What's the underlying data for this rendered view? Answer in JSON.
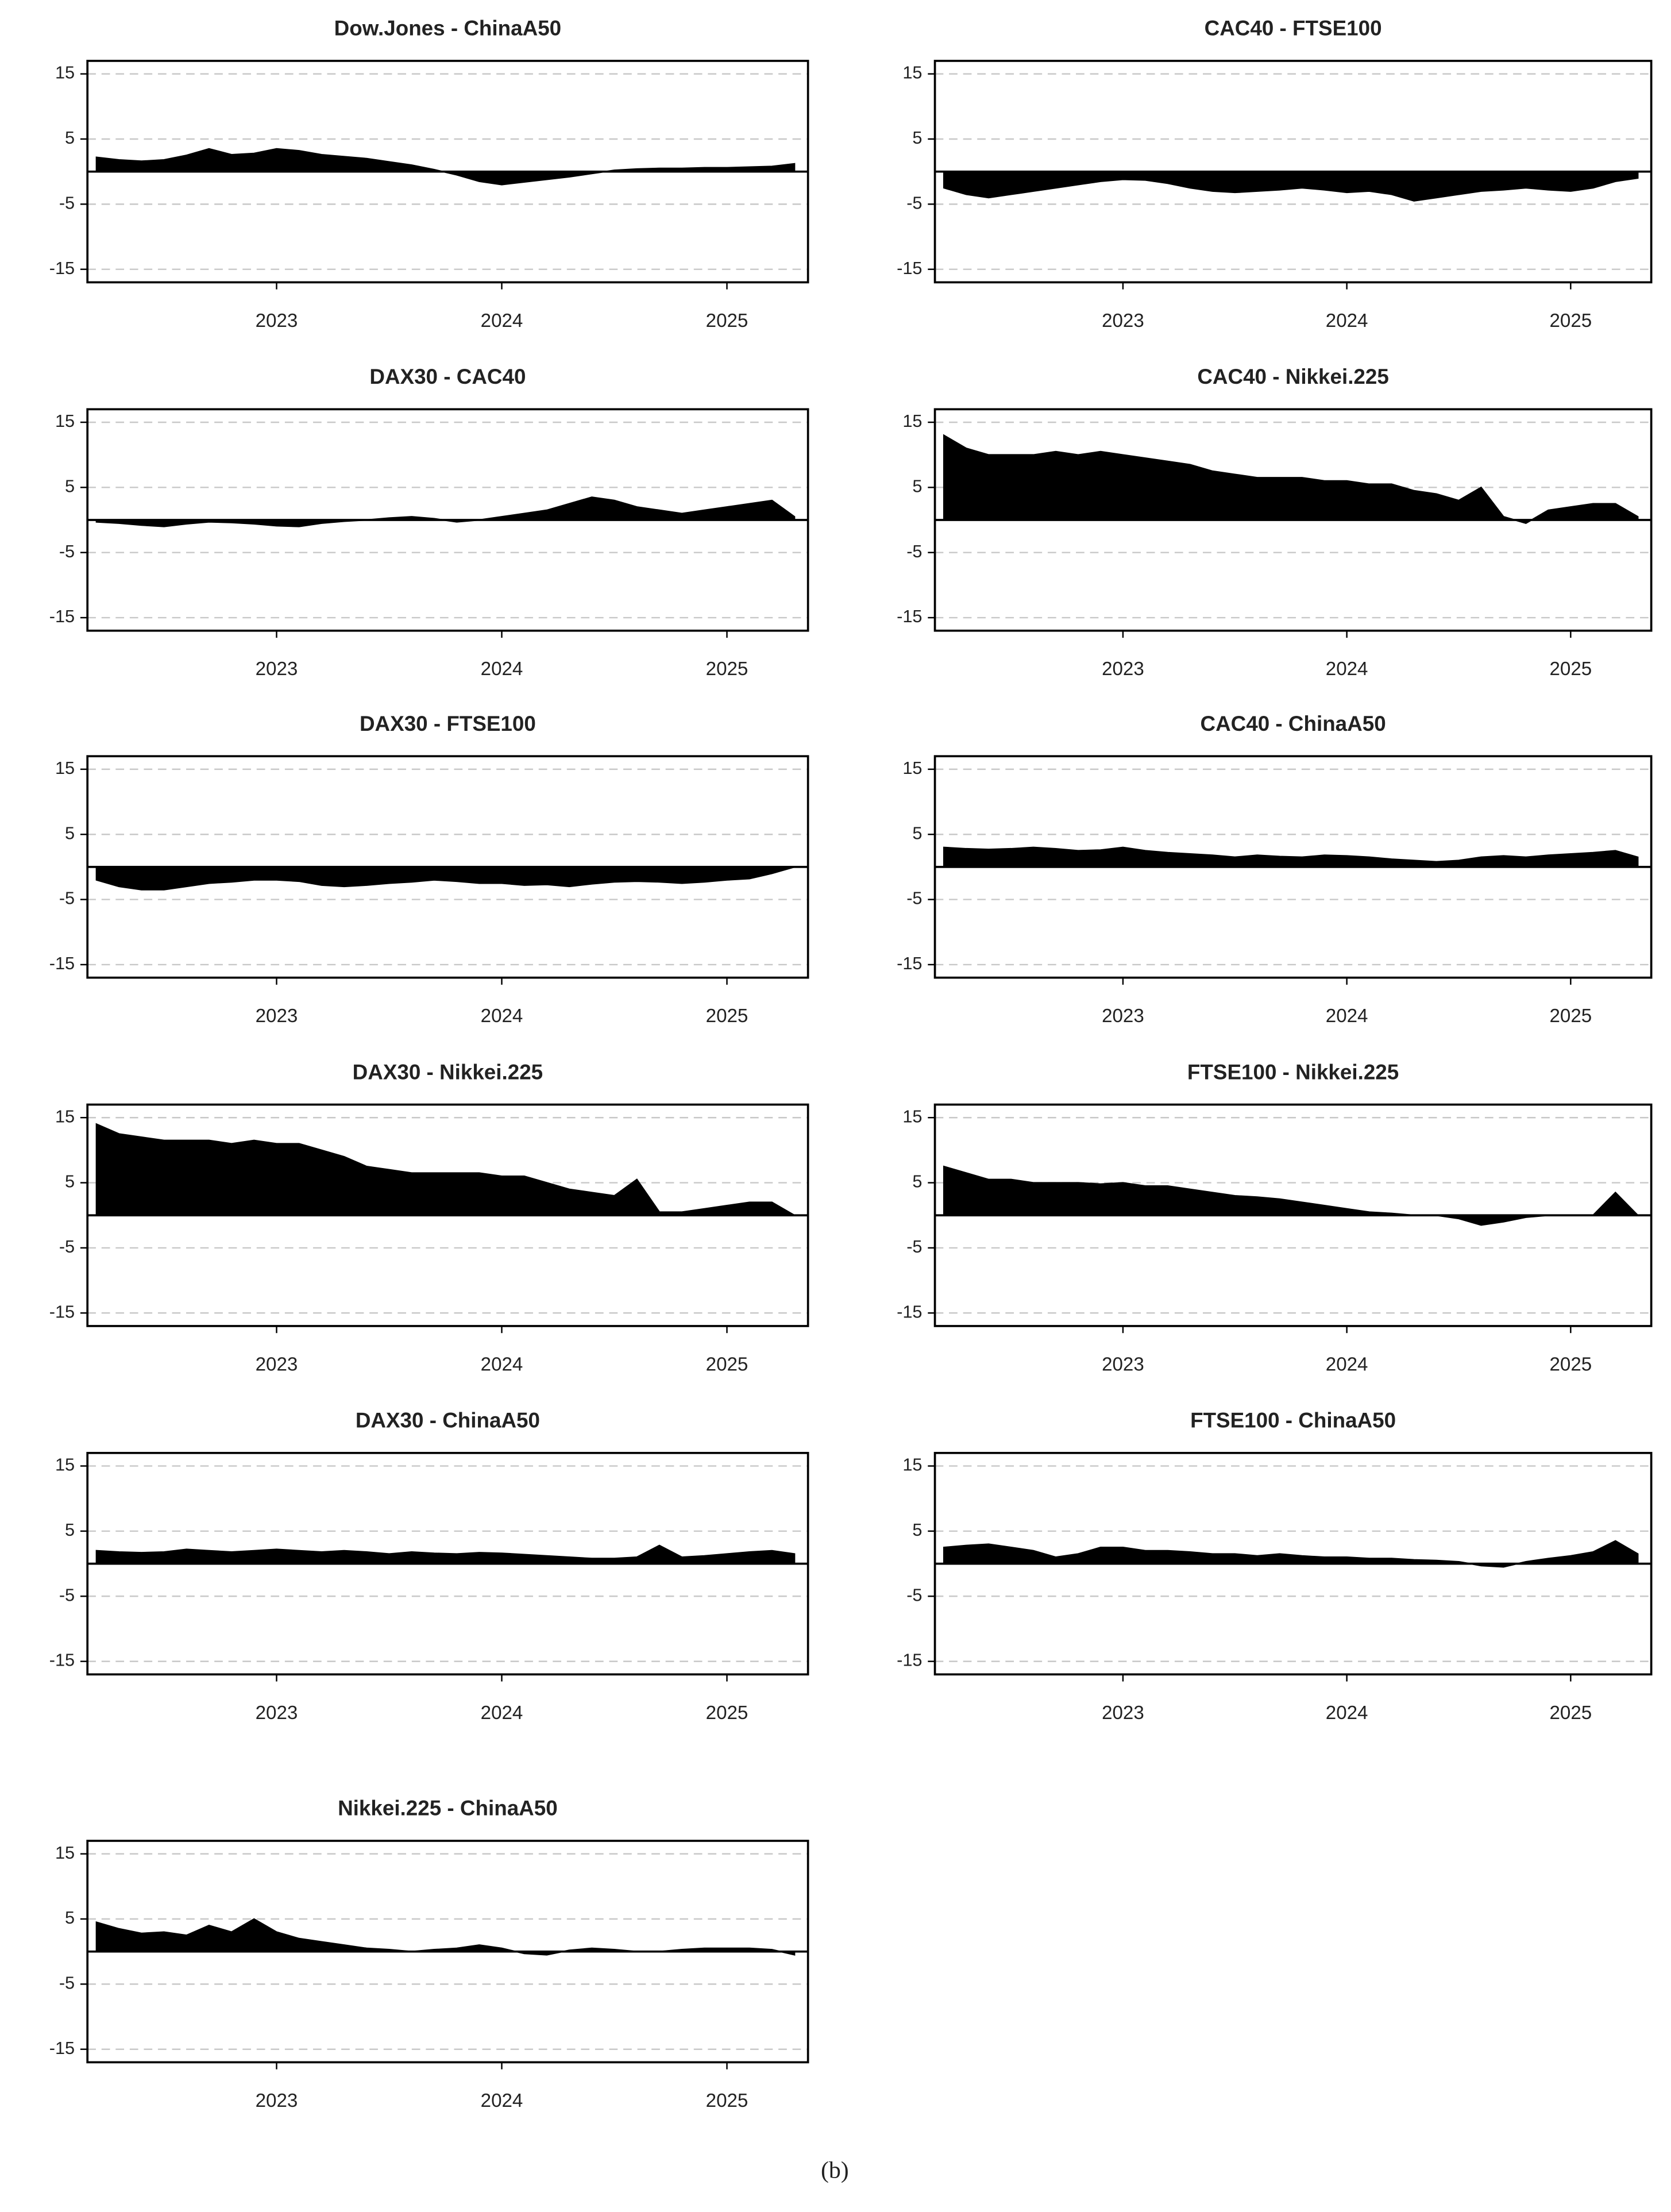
{
  "chart_data": [
    {
      "type": "area",
      "title": "Dow.Jones - ChinaA50",
      "color": "#000000",
      "grid": true,
      "x": [
        2022.2,
        2022.3,
        2022.4,
        2022.5,
        2022.6,
        2022.7,
        2022.8,
        2022.9,
        2023.0,
        2023.1,
        2023.2,
        2023.3,
        2023.4,
        2023.5,
        2023.6,
        2023.7,
        2023.8,
        2023.9,
        2024.0,
        2024.1,
        2024.2,
        2024.3,
        2024.4,
        2024.5,
        2024.6,
        2024.7,
        2024.8,
        2024.9,
        2025.0,
        2025.1,
        2025.2,
        2025.3
      ],
      "values": [
        2.2,
        1.8,
        1.6,
        1.8,
        2.5,
        3.5,
        2.6,
        2.8,
        3.5,
        3.2,
        2.6,
        2.3,
        2.0,
        1.5,
        1.0,
        0.3,
        -0.5,
        -1.5,
        -2.0,
        -1.6,
        -1.2,
        -0.8,
        -0.3,
        0.2,
        0.4,
        0.5,
        0.5,
        0.6,
        0.6,
        0.7,
        0.8,
        1.2
      ],
      "xlim": [
        2022.16,
        2025.36
      ],
      "ylim": [
        -17,
        17
      ],
      "xticks": [
        2023,
        2024,
        2025
      ],
      "yticks": [
        -15,
        -5,
        5,
        15
      ]
    },
    {
      "type": "area",
      "title": "CAC40 - FTSE100",
      "color": "#000000",
      "grid": true,
      "x": [
        2022.2,
        2022.3,
        2022.4,
        2022.5,
        2022.6,
        2022.7,
        2022.8,
        2022.9,
        2023.0,
        2023.1,
        2023.2,
        2023.3,
        2023.4,
        2023.5,
        2023.6,
        2023.7,
        2023.8,
        2023.9,
        2024.0,
        2024.1,
        2024.2,
        2024.3,
        2024.4,
        2024.5,
        2024.6,
        2024.7,
        2024.8,
        2024.9,
        2025.0,
        2025.1,
        2025.2,
        2025.3
      ],
      "values": [
        -2.5,
        -3.5,
        -4.0,
        -3.5,
        -3.0,
        -2.5,
        -2.0,
        -1.5,
        -1.2,
        -1.3,
        -1.8,
        -2.5,
        -3.0,
        -3.2,
        -3.0,
        -2.8,
        -2.5,
        -2.8,
        -3.2,
        -3.0,
        -3.5,
        -4.5,
        -4.0,
        -3.5,
        -3.0,
        -2.8,
        -2.5,
        -2.8,
        -3.0,
        -2.5,
        -1.5,
        -1.0
      ],
      "xlim": [
        2022.16,
        2025.36
      ],
      "ylim": [
        -17,
        17
      ],
      "xticks": [
        2023,
        2024,
        2025
      ],
      "yticks": [
        -15,
        -5,
        5,
        15
      ]
    },
    {
      "type": "area",
      "title": "DAX30 - CAC40",
      "color": "#000000",
      "grid": true,
      "x": [
        2022.2,
        2022.3,
        2022.4,
        2022.5,
        2022.6,
        2022.7,
        2022.8,
        2022.9,
        2023.0,
        2023.1,
        2023.2,
        2023.3,
        2023.4,
        2023.5,
        2023.6,
        2023.7,
        2023.8,
        2023.9,
        2024.0,
        2024.1,
        2024.2,
        2024.3,
        2024.4,
        2024.5,
        2024.6,
        2024.7,
        2024.8,
        2024.9,
        2025.0,
        2025.1,
        2025.2,
        2025.3
      ],
      "values": [
        -0.3,
        -0.5,
        -0.8,
        -1.0,
        -0.6,
        -0.3,
        -0.4,
        -0.6,
        -0.9,
        -1.0,
        -0.5,
        -0.2,
        0.0,
        0.3,
        0.5,
        0.2,
        -0.3,
        0.0,
        0.5,
        1.0,
        1.5,
        2.5,
        3.5,
        3.0,
        2.0,
        1.5,
        1.0,
        1.5,
        2.0,
        2.5,
        3.0,
        0.5
      ],
      "xlim": [
        2022.16,
        2025.36
      ],
      "ylim": [
        -17,
        17
      ],
      "xticks": [
        2023,
        2024,
        2025
      ],
      "yticks": [
        -15,
        -5,
        5,
        15
      ]
    },
    {
      "type": "area",
      "title": "CAC40 - Nikkei.225",
      "color": "#000000",
      "grid": true,
      "x": [
        2022.2,
        2022.3,
        2022.4,
        2022.5,
        2022.6,
        2022.7,
        2022.8,
        2022.9,
        2023.0,
        2023.1,
        2023.2,
        2023.3,
        2023.4,
        2023.5,
        2023.6,
        2023.7,
        2023.8,
        2023.9,
        2024.0,
        2024.1,
        2024.2,
        2024.3,
        2024.4,
        2024.5,
        2024.6,
        2024.7,
        2024.8,
        2024.9,
        2025.0,
        2025.1,
        2025.2,
        2025.3
      ],
      "values": [
        13.0,
        11.0,
        10.0,
        10.0,
        10.0,
        10.5,
        10.0,
        10.5,
        10.0,
        9.5,
        9.0,
        8.5,
        7.5,
        7.0,
        6.5,
        6.5,
        6.5,
        6.0,
        6.0,
        5.5,
        5.5,
        4.5,
        4.0,
        3.0,
        5.0,
        0.5,
        -0.5,
        1.5,
        2.0,
        2.5,
        2.5,
        0.5
      ],
      "xlim": [
        2022.16,
        2025.36
      ],
      "ylim": [
        -17,
        17
      ],
      "xticks": [
        2023,
        2024,
        2025
      ],
      "yticks": [
        -15,
        -5,
        5,
        15
      ]
    },
    {
      "type": "area",
      "title": "DAX30 - FTSE100",
      "color": "#000000",
      "grid": true,
      "x": [
        2022.2,
        2022.3,
        2022.4,
        2022.5,
        2022.6,
        2022.7,
        2022.8,
        2022.9,
        2023.0,
        2023.1,
        2023.2,
        2023.3,
        2023.4,
        2023.5,
        2023.6,
        2023.7,
        2023.8,
        2023.9,
        2024.0,
        2024.1,
        2024.2,
        2024.3,
        2024.4,
        2024.5,
        2024.6,
        2024.7,
        2024.8,
        2024.9,
        2025.0,
        2025.1,
        2025.2,
        2025.3
      ],
      "values": [
        -2.0,
        -3.0,
        -3.5,
        -3.5,
        -3.0,
        -2.5,
        -2.3,
        -2.0,
        -2.0,
        -2.2,
        -2.8,
        -3.0,
        -2.8,
        -2.5,
        -2.3,
        -2.0,
        -2.2,
        -2.5,
        -2.5,
        -2.8,
        -2.7,
        -3.0,
        -2.6,
        -2.3,
        -2.2,
        -2.3,
        -2.5,
        -2.3,
        -2.0,
        -1.8,
        -1.0,
        0.0
      ],
      "xlim": [
        2022.16,
        2025.36
      ],
      "ylim": [
        -17,
        17
      ],
      "xticks": [
        2023,
        2024,
        2025
      ],
      "yticks": [
        -15,
        -5,
        5,
        15
      ]
    },
    {
      "type": "area",
      "title": "CAC40 - ChinaA50",
      "color": "#000000",
      "grid": true,
      "x": [
        2022.2,
        2022.3,
        2022.4,
        2022.5,
        2022.6,
        2022.7,
        2022.8,
        2022.9,
        2023.0,
        2023.1,
        2023.2,
        2023.3,
        2023.4,
        2023.5,
        2023.6,
        2023.7,
        2023.8,
        2023.9,
        2024.0,
        2024.1,
        2024.2,
        2024.3,
        2024.4,
        2024.5,
        2024.6,
        2024.7,
        2024.8,
        2024.9,
        2025.0,
        2025.1,
        2025.2,
        2025.3
      ],
      "values": [
        3.0,
        2.8,
        2.7,
        2.8,
        3.0,
        2.8,
        2.5,
        2.6,
        3.0,
        2.5,
        2.2,
        2.0,
        1.8,
        1.5,
        1.8,
        1.6,
        1.5,
        1.8,
        1.7,
        1.5,
        1.2,
        1.0,
        0.8,
        1.0,
        1.5,
        1.7,
        1.5,
        1.8,
        2.0,
        2.2,
        2.5,
        1.5
      ],
      "xlim": [
        2022.16,
        2025.36
      ],
      "ylim": [
        -17,
        17
      ],
      "xticks": [
        2023,
        2024,
        2025
      ],
      "yticks": [
        -15,
        -5,
        5,
        15
      ]
    },
    {
      "type": "area",
      "title": "DAX30 - Nikkei.225",
      "color": "#000000",
      "grid": true,
      "x": [
        2022.2,
        2022.3,
        2022.4,
        2022.5,
        2022.6,
        2022.7,
        2022.8,
        2022.9,
        2023.0,
        2023.1,
        2023.2,
        2023.3,
        2023.4,
        2023.5,
        2023.6,
        2023.7,
        2023.8,
        2023.9,
        2024.0,
        2024.1,
        2024.2,
        2024.3,
        2024.4,
        2024.5,
        2024.6,
        2024.7,
        2024.8,
        2024.9,
        2025.0,
        2025.1,
        2025.2,
        2025.3
      ],
      "values": [
        14.0,
        12.5,
        12.0,
        11.5,
        11.5,
        11.5,
        11.0,
        11.5,
        11.0,
        11.0,
        10.0,
        9.0,
        7.5,
        7.0,
        6.5,
        6.5,
        6.5,
        6.5,
        6.0,
        6.0,
        5.0,
        4.0,
        3.5,
        3.0,
        5.5,
        0.5,
        0.5,
        1.0,
        1.5,
        2.0,
        2.0,
        0.0
      ],
      "xlim": [
        2022.16,
        2025.36
      ],
      "ylim": [
        -17,
        17
      ],
      "xticks": [
        2023,
        2024,
        2025
      ],
      "yticks": [
        -15,
        -5,
        5,
        15
      ]
    },
    {
      "type": "area",
      "title": "FTSE100 - Nikkei.225",
      "color": "#000000",
      "grid": true,
      "x": [
        2022.2,
        2022.3,
        2022.4,
        2022.5,
        2022.6,
        2022.7,
        2022.8,
        2022.9,
        2023.0,
        2023.1,
        2023.2,
        2023.3,
        2023.4,
        2023.5,
        2023.6,
        2023.7,
        2023.8,
        2023.9,
        2024.0,
        2024.1,
        2024.2,
        2024.3,
        2024.4,
        2024.5,
        2024.6,
        2024.7,
        2024.8,
        2024.9,
        2025.0,
        2025.1,
        2025.2,
        2025.3
      ],
      "values": [
        7.5,
        6.5,
        5.5,
        5.5,
        5.0,
        5.0,
        5.0,
        4.8,
        5.0,
        4.5,
        4.5,
        4.0,
        3.5,
        3.0,
        2.8,
        2.5,
        2.0,
        1.5,
        1.0,
        0.5,
        0.3,
        0.0,
        0.0,
        -0.5,
        -1.5,
        -1.0,
        -0.3,
        0.0,
        0.0,
        0.0,
        3.5,
        0.0
      ],
      "xlim": [
        2022.16,
        2025.36
      ],
      "ylim": [
        -17,
        17
      ],
      "xticks": [
        2023,
        2024,
        2025
      ],
      "yticks": [
        -15,
        -5,
        5,
        15
      ]
    },
    {
      "type": "area",
      "title": "DAX30 - ChinaA50",
      "color": "#000000",
      "grid": true,
      "x": [
        2022.2,
        2022.3,
        2022.4,
        2022.5,
        2022.6,
        2022.7,
        2022.8,
        2022.9,
        2023.0,
        2023.1,
        2023.2,
        2023.3,
        2023.4,
        2023.5,
        2023.6,
        2023.7,
        2023.8,
        2023.9,
        2024.0,
        2024.1,
        2024.2,
        2024.3,
        2024.4,
        2024.5,
        2024.6,
        2024.7,
        2024.8,
        2024.9,
        2025.0,
        2025.1,
        2025.2,
        2025.3
      ],
      "values": [
        2.0,
        1.8,
        1.7,
        1.8,
        2.2,
        2.0,
        1.8,
        2.0,
        2.2,
        2.0,
        1.8,
        2.0,
        1.8,
        1.5,
        1.8,
        1.6,
        1.5,
        1.7,
        1.6,
        1.4,
        1.2,
        1.0,
        0.8,
        0.8,
        1.0,
        2.8,
        1.0,
        1.2,
        1.5,
        1.8,
        2.0,
        1.5
      ],
      "xlim": [
        2022.16,
        2025.36
      ],
      "ylim": [
        -17,
        17
      ],
      "xticks": [
        2023,
        2024,
        2025
      ],
      "yticks": [
        -15,
        -5,
        5,
        15
      ]
    },
    {
      "type": "area",
      "title": "FTSE100 - ChinaA50",
      "color": "#000000",
      "grid": true,
      "x": [
        2022.2,
        2022.3,
        2022.4,
        2022.5,
        2022.6,
        2022.7,
        2022.8,
        2022.9,
        2023.0,
        2023.1,
        2023.2,
        2023.3,
        2023.4,
        2023.5,
        2023.6,
        2023.7,
        2023.8,
        2023.9,
        2024.0,
        2024.1,
        2024.2,
        2024.3,
        2024.4,
        2024.5,
        2024.6,
        2024.7,
        2024.8,
        2024.9,
        2025.0,
        2025.1,
        2025.2,
        2025.3
      ],
      "values": [
        2.5,
        2.8,
        3.0,
        2.5,
        2.0,
        1.0,
        1.5,
        2.5,
        2.5,
        2.0,
        2.0,
        1.8,
        1.5,
        1.5,
        1.2,
        1.5,
        1.2,
        1.0,
        1.0,
        0.8,
        0.8,
        0.6,
        0.5,
        0.3,
        -0.3,
        -0.5,
        0.3,
        0.8,
        1.2,
        1.8,
        3.5,
        1.5
      ],
      "xlim": [
        2022.16,
        2025.36
      ],
      "ylim": [
        -17,
        17
      ],
      "xticks": [
        2023,
        2024,
        2025
      ],
      "yticks": [
        -15,
        -5,
        5,
        15
      ]
    },
    {
      "type": "area",
      "title": "Nikkei.225 - ChinaA50",
      "color": "#000000",
      "grid": true,
      "x": [
        2022.2,
        2022.3,
        2022.4,
        2022.5,
        2022.6,
        2022.7,
        2022.8,
        2022.9,
        2023.0,
        2023.1,
        2023.2,
        2023.3,
        2023.4,
        2023.5,
        2023.6,
        2023.7,
        2023.8,
        2023.9,
        2024.0,
        2024.1,
        2024.2,
        2024.3,
        2024.4,
        2024.5,
        2024.6,
        2024.7,
        2024.8,
        2024.9,
        2025.0,
        2025.1,
        2025.2,
        2025.3
      ],
      "values": [
        4.5,
        3.5,
        2.8,
        3.0,
        2.5,
        4.0,
        3.0,
        5.0,
        3.0,
        2.0,
        1.5,
        1.0,
        0.5,
        0.3,
        0.0,
        0.3,
        0.5,
        1.0,
        0.5,
        -0.3,
        -0.5,
        0.2,
        0.5,
        0.3,
        0.0,
        0.0,
        0.3,
        0.5,
        0.5,
        0.5,
        0.3,
        -0.5
      ],
      "xlim": [
        2022.16,
        2025.36
      ],
      "ylim": [
        -17,
        17
      ],
      "xticks": [
        2023,
        2024,
        2025
      ],
      "yticks": [
        -15,
        -5,
        5,
        15
      ]
    }
  ],
  "caption": "(b)"
}
